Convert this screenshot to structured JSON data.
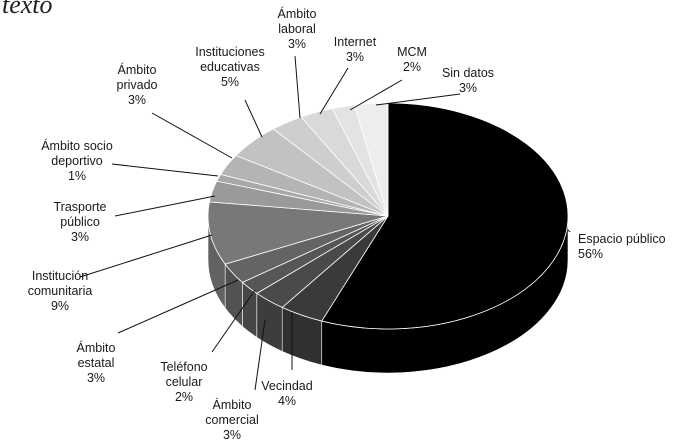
{
  "header": {
    "fragment": "texto"
  },
  "chart_data": {
    "type": "pie",
    "title": "",
    "slices": [
      {
        "label": "Espacio público",
        "value": 56,
        "color": "#000000"
      },
      {
        "label": "Vecindad",
        "value": 4,
        "color": "#3a3a3a"
      },
      {
        "label": "Ámbito comercial",
        "value": 3,
        "color": "#4a4a4a"
      },
      {
        "label": "Teléfono celular",
        "value": 2,
        "color": "#565656"
      },
      {
        "label": "Ámbito estatal",
        "value": 3,
        "color": "#646464"
      },
      {
        "label": "Institución comunitaria",
        "value": 9,
        "color": "#787878"
      },
      {
        "label": "Trasporte público",
        "value": 3,
        "color": "#9a9a9a"
      },
      {
        "label": "Ámbito socio deportivo",
        "value": 1,
        "color": "#a8a8a8"
      },
      {
        "label": "Ámbito privado",
        "value": 3,
        "color": "#b4b4b4"
      },
      {
        "label": "Instituciones educativas",
        "value": 5,
        "color": "#c2c2c2"
      },
      {
        "label": "Ámbito laboral",
        "value": 3,
        "color": "#cecece"
      },
      {
        "label": "Internet",
        "value": 3,
        "color": "#d9d9d9"
      },
      {
        "label": "MCM",
        "value": 2,
        "color": "#e3e3e3"
      },
      {
        "label": "Sin datos",
        "value": 3,
        "color": "#ededed"
      }
    ],
    "value_suffix": "%",
    "style": "3d-exploded-pie",
    "legend": "none"
  }
}
